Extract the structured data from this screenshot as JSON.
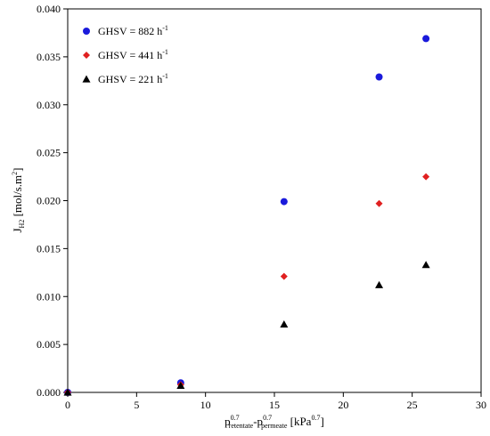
{
  "chart_data": {
    "type": "scatter",
    "xlim": [
      0,
      30
    ],
    "ylim": [
      0,
      0.04
    ],
    "xticks": [
      0,
      5,
      10,
      15,
      20,
      25,
      30
    ],
    "yticks": [
      0.0,
      0.005,
      0.01,
      0.015,
      0.02,
      0.025,
      0.03,
      0.035,
      0.04
    ],
    "ytick_labels": [
      "0.000",
      "0.005",
      "0.010",
      "0.015",
      "0.020",
      "0.025",
      "0.030",
      "0.035",
      "0.040"
    ],
    "grid": false,
    "legend_position": "top-left",
    "xlabel": {
      "p1": "p",
      "sup1": "0.7",
      "sub1": "retentate",
      "p2": "-p",
      "sup2": "0.7",
      "sub2": "permeate",
      "unit_open": " [kPa",
      "unit_sup": "0.7",
      "unit_close": "]"
    },
    "ylabel": {
      "main": "J",
      "sub": "H2",
      "unit": " [mol/s.m",
      "unit_sup": "2",
      "unit_close": "]"
    },
    "series": [
      {
        "name": "GHSV =  882 h",
        "name_sup": "-1",
        "marker": "circle",
        "color": "#1a1adb",
        "x": [
          0,
          8.2,
          15.7,
          22.6,
          26.0
        ],
        "y": [
          0.0,
          0.001,
          0.0199,
          0.0329,
          0.0369
        ]
      },
      {
        "name": "GHSV =  441 h",
        "name_sup": "-1",
        "marker": "diamond",
        "color": "#e02020",
        "x": [
          0,
          8.2,
          15.7,
          22.6,
          26.0
        ],
        "y": [
          0.0,
          0.0008,
          0.0121,
          0.0197,
          0.0225
        ]
      },
      {
        "name": "GHSV =  221 h",
        "name_sup": "-1",
        "marker": "triangle",
        "color": "#000000",
        "x": [
          0,
          8.2,
          15.7,
          22.6,
          26.0
        ],
        "y": [
          0.0,
          0.0007,
          0.0071,
          0.0112,
          0.0133
        ]
      }
    ]
  }
}
